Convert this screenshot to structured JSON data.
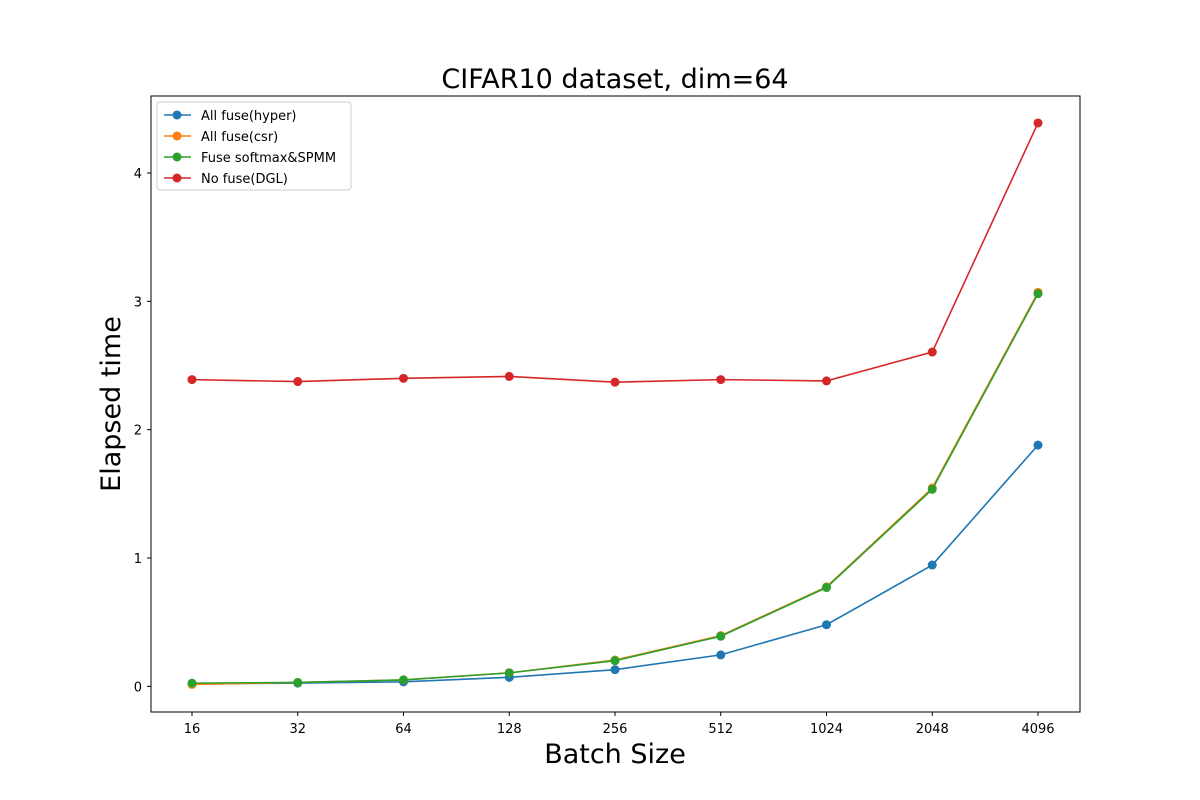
{
  "chart_data": {
    "type": "line",
    "title": "CIFAR10 dataset, dim=64",
    "xlabel": "Batch Size",
    "ylabel": "Elapsed time",
    "categories": [
      "16",
      "32",
      "64",
      "128",
      "256",
      "512",
      "1024",
      "2048",
      "4096"
    ],
    "yticks": [
      "0",
      "1",
      "2",
      "3",
      "4"
    ],
    "ylim": [
      -0.2,
      4.6
    ],
    "legend_position": "upper-left",
    "series": [
      {
        "name": "All fuse(hyper)",
        "color": "#1f77b4",
        "values": [
          0.02,
          0.025,
          0.035,
          0.07,
          0.13,
          0.245,
          0.48,
          0.945,
          1.88
        ]
      },
      {
        "name": "All fuse(csr)",
        "color": "#ff7f0e",
        "values": [
          0.015,
          0.03,
          0.05,
          0.105,
          0.205,
          0.395,
          0.775,
          1.545,
          3.07
        ]
      },
      {
        "name": "Fuse softmax&SPMM",
        "color": "#2ca02c",
        "values": [
          0.025,
          0.03,
          0.05,
          0.105,
          0.2,
          0.39,
          0.77,
          1.535,
          3.06
        ]
      },
      {
        "name": "No fuse(DGL)",
        "color": "#d62728",
        "values": [
          2.39,
          2.375,
          2.4,
          2.415,
          2.37,
          2.39,
          2.38,
          2.605,
          4.39
        ]
      }
    ]
  }
}
